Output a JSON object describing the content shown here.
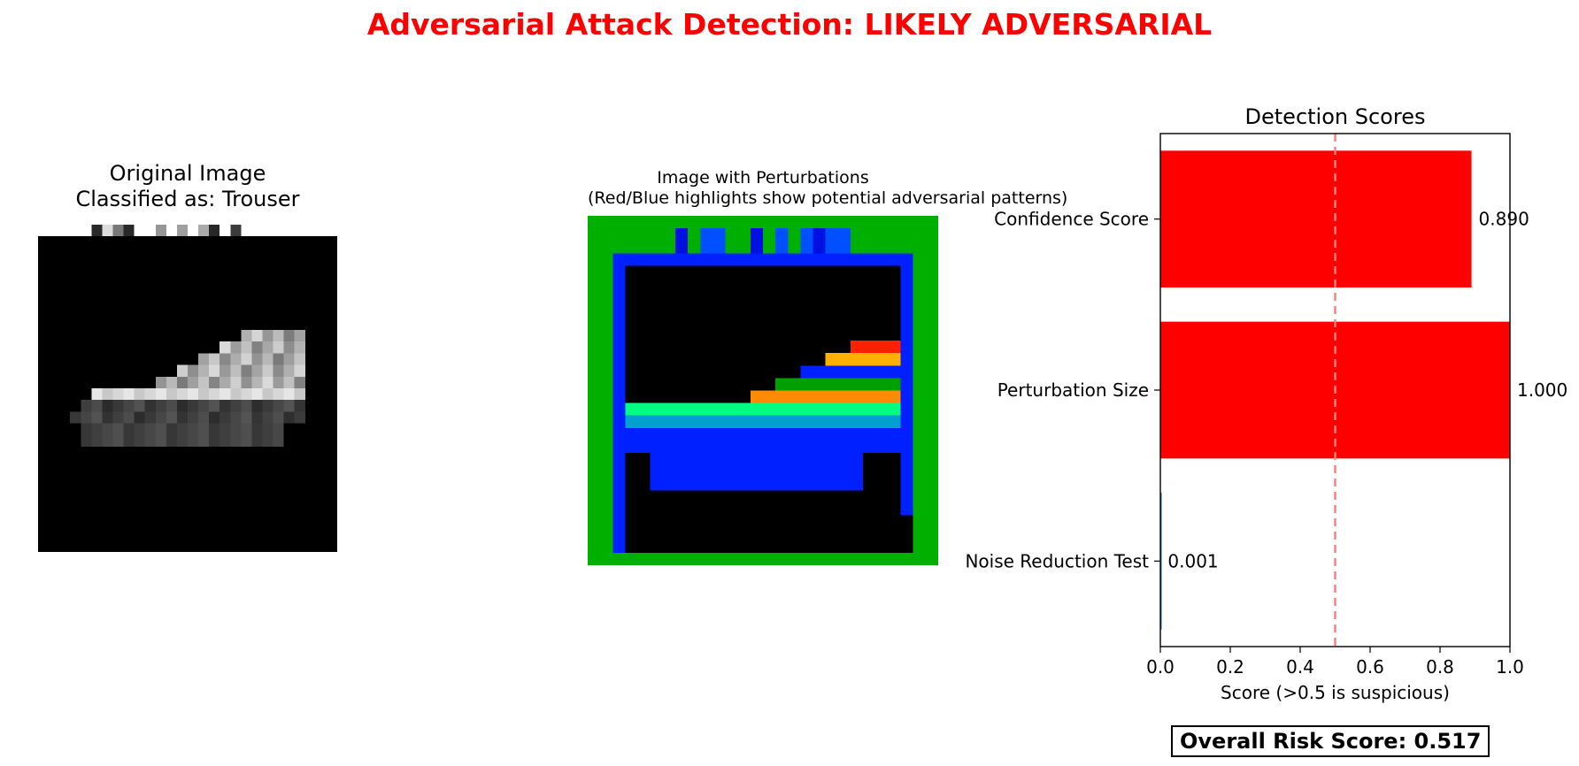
{
  "title": "Adversarial Attack Detection: LIKELY ADVERSARIAL",
  "colors": {
    "title": "#ff0000",
    "bar": "#ff0000",
    "threshold_line": "#ff8080",
    "low_bar": "#1f77b4",
    "perturb_frame": "#00b000",
    "perturb_blue": "#0020ff",
    "perturb_orange": "#ff8c00",
    "perturb_red": "#ff2000",
    "perturb_green": "#00a000",
    "perturb_cyan": "#00a0d0"
  },
  "original_panel": {
    "title_line1": "Original Image",
    "title_line2": "Classified as: Trouser",
    "image": "grayscale-sneaker-image"
  },
  "perturbation_panel": {
    "title_line1": "Image with Perturbations",
    "title_line2": "(Red/Blue highlights show potential adversarial patterns)",
    "image": "color-highlighted-perturbation-image"
  },
  "chart_data": {
    "type": "bar",
    "orientation": "horizontal",
    "title": "Detection Scores",
    "categories": [
      "Confidence Score",
      "Perturbation Size",
      "Noise Reduction Test"
    ],
    "values": [
      0.89,
      1.0,
      0.001
    ],
    "value_labels": [
      "0.890",
      "1.000",
      "0.001"
    ],
    "xlabel": "Score (>0.5 is suspicious)",
    "ylabel": "",
    "xlim": [
      0,
      1
    ],
    "xticks": [
      "0.0",
      "0.2",
      "0.4",
      "0.6",
      "0.8",
      "1.0"
    ],
    "threshold": 0.5,
    "grid": false
  },
  "overall_risk": "Overall Risk Score: 0.517"
}
